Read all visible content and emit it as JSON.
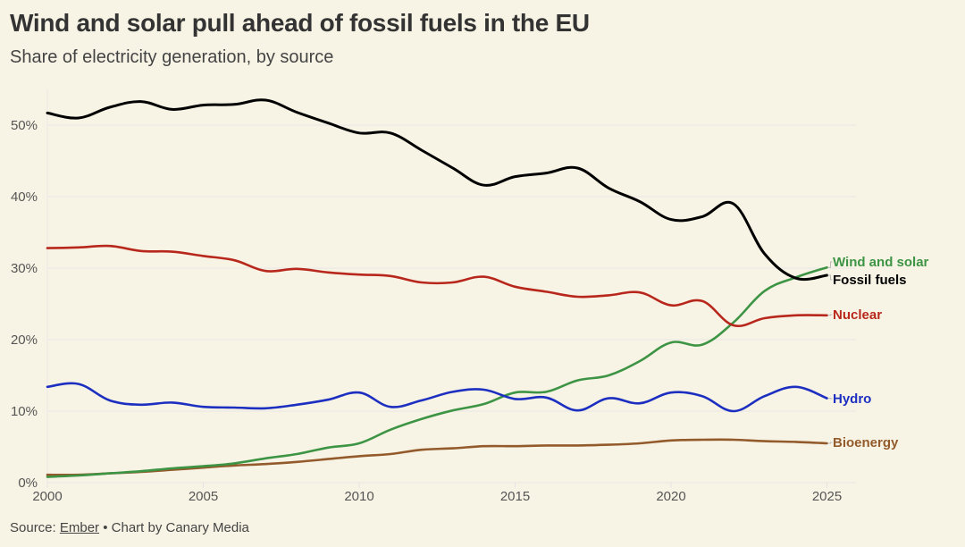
{
  "header": {
    "title": "Wind and solar pull ahead of fossil fuels in the EU",
    "subtitle": "Share of electricity generation, by source"
  },
  "footer": {
    "source_prefix": "Source: ",
    "source_link": "Ember",
    "credit": " • Chart by Canary Media"
  },
  "chart_data": {
    "type": "line",
    "title": "Wind and solar pull ahead of fossil fuels in the EU",
    "subtitle": "Share of electricity generation, by source",
    "xlabel": "",
    "ylabel": "",
    "x": [
      2000,
      2001,
      2002,
      2003,
      2004,
      2005,
      2006,
      2007,
      2008,
      2009,
      2010,
      2011,
      2012,
      2013,
      2014,
      2015,
      2016,
      2017,
      2018,
      2019,
      2020,
      2021,
      2022,
      2023,
      2024,
      2025
    ],
    "xlim": [
      2000,
      2026
    ],
    "ylim": [
      0,
      55
    ],
    "x_ticks": [
      2000,
      2005,
      2010,
      2015,
      2020,
      2025
    ],
    "x_tick_labels": [
      "2000",
      "2005",
      "2010",
      "2015",
      "2020",
      "2025"
    ],
    "y_ticks": [
      0,
      10,
      20,
      30,
      40,
      50
    ],
    "y_tick_labels": [
      "0%",
      "10%",
      "20%",
      "30%",
      "40%",
      "50%"
    ],
    "grid": true,
    "legend": "direct labels at line ends (right)",
    "series": [
      {
        "name": "Fossil fuels",
        "color": "#000000",
        "values": [
          51.7,
          51.0,
          52.5,
          53.3,
          52.2,
          52.8,
          52.9,
          53.5,
          51.8,
          50.3,
          48.9,
          48.9,
          46.5,
          44.0,
          41.6,
          42.8,
          43.3,
          44.0,
          41.2,
          39.3,
          36.8,
          37.2,
          39.0,
          32.0,
          28.6,
          29.0
        ]
      },
      {
        "name": "Nuclear",
        "color": "#b8271c",
        "values": [
          32.8,
          32.9,
          33.1,
          32.4,
          32.3,
          31.7,
          31.1,
          29.6,
          29.9,
          29.4,
          29.1,
          28.9,
          28.0,
          28.0,
          28.8,
          27.4,
          26.7,
          26.0,
          26.2,
          26.6,
          24.8,
          25.4,
          22.0,
          23.0,
          23.4,
          23.4
        ]
      },
      {
        "name": "Hydro",
        "color": "#1c2fc0",
        "values": [
          13.4,
          13.8,
          11.5,
          10.9,
          11.2,
          10.6,
          10.5,
          10.4,
          10.9,
          11.6,
          12.6,
          10.6,
          11.5,
          12.7,
          13.0,
          11.7,
          11.9,
          10.1,
          11.8,
          11.1,
          12.6,
          12.1,
          10.0,
          12.1,
          13.4,
          11.8
        ]
      },
      {
        "name": "Wind and solar",
        "color": "#3d9444",
        "values": [
          0.8,
          1.0,
          1.3,
          1.6,
          2.0,
          2.3,
          2.7,
          3.4,
          4.0,
          4.9,
          5.5,
          7.4,
          8.9,
          10.1,
          11.0,
          12.6,
          12.7,
          14.3,
          15.0,
          17.0,
          19.6,
          19.3,
          22.4,
          26.8,
          28.7,
          30.1
        ]
      },
      {
        "name": "Bioenergy",
        "color": "#935a2b",
        "values": [
          1.1,
          1.1,
          1.3,
          1.5,
          1.8,
          2.1,
          2.4,
          2.6,
          2.9,
          3.3,
          3.7,
          4.0,
          4.6,
          4.8,
          5.1,
          5.1,
          5.2,
          5.2,
          5.3,
          5.5,
          5.9,
          6.0,
          6.0,
          5.8,
          5.7,
          5.5
        ]
      }
    ],
    "label_order_top_to_bottom": [
      "Wind and solar",
      "Fossil fuels",
      "Nuclear",
      "Hydro",
      "Bioenergy"
    ]
  }
}
